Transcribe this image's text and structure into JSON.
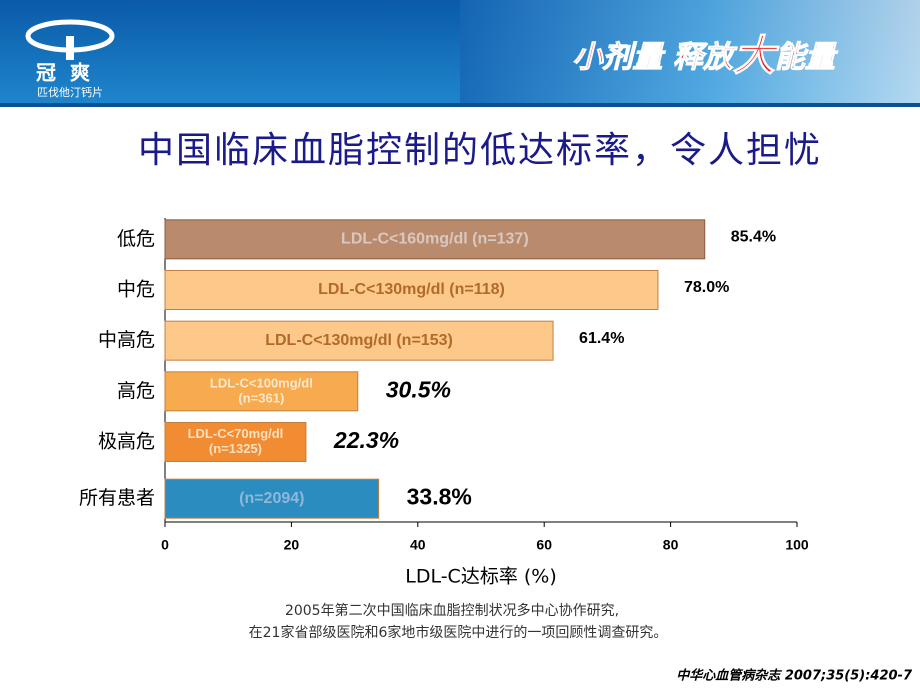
{
  "header": {
    "brand": "冠爽",
    "brand_sub": "匹伐他汀钙片",
    "slogan": [
      "小剂量 释放",
      "大",
      "能量"
    ]
  },
  "chart_data": {
    "type": "hbar",
    "title": "中国临床血脂控制的低达标率，令人担忧",
    "categories": [
      "低危",
      "中危",
      "中高危",
      "高危",
      "极高危",
      "所有患者"
    ],
    "values": [
      85.4,
      78.0,
      61.4,
      30.5,
      22.3,
      33.8
    ],
    "value_labels": [
      "85.4%",
      "78.0%",
      "61.4%",
      "30.5%",
      "22.3%",
      "33.8%"
    ],
    "bar_labels": [
      [
        "LDL-C<160mg/dl  (n=137)"
      ],
      [
        "LDL-C<130mg/dl  (n=118)"
      ],
      [
        "LDL-C<130mg/dl  (n=153)"
      ],
      [
        "LDL-C<100mg/dl",
        "(n=361)"
      ],
      [
        "LDL-C<70mg/dl",
        "(n=1325)"
      ],
      [
        "(n=2094)"
      ]
    ],
    "colors": [
      "#b98a6c",
      "#fdc98b",
      "#fdc98b",
      "#f8ab4e",
      "#f18c33",
      "#2b8cc0"
    ],
    "xlim": [
      0,
      100
    ],
    "xticks": [
      0,
      20,
      40,
      60,
      80,
      100
    ],
    "xlabel": "LDL-C达标率 (%)"
  },
  "footnote": [
    "2005年第二次中国临床血脂控制状况多中心协作研究,",
    "在21家省部级医院和6家地市级医院中进行的一项回顾性调查研究。"
  ],
  "citation": "中华心血管病杂志 2007;35(5):420-7"
}
